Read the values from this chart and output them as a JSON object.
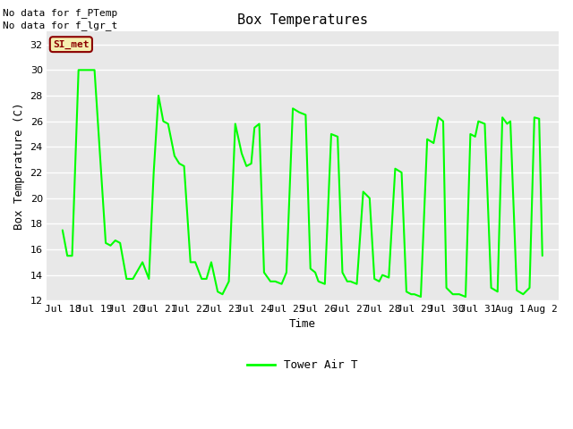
{
  "title": "Box Temperatures",
  "ylabel": "Box Temperature (C)",
  "xlabel": "Time",
  "ylim": [
    12,
    33
  ],
  "yticks": [
    12,
    14,
    16,
    18,
    20,
    22,
    24,
    26,
    28,
    30,
    32
  ],
  "bg_color": "#e8e8e8",
  "line_color": "#00ff00",
  "annotations": [
    "No data for f_PTemp",
    "No data for f_lgr_t"
  ],
  "si_met_label": "SI_met",
  "legend_label": "Tower Air T",
  "x_tick_labels": [
    "Jul 18",
    "Jul 19",
    "Jul 20",
    "Jul 21",
    "Jul 22",
    "Jul 23",
    "Jul 24",
    "Jul 25",
    "Jul 26",
    "Jul 27",
    "Jul 28",
    "Jul 29",
    "Jul 30",
    "Jul 31",
    "Aug 1",
    "Aug 2"
  ],
  "time_data": [
    0.0,
    0.15,
    0.3,
    0.5,
    1.0,
    1.35,
    1.5,
    1.65,
    1.8,
    2.0,
    2.2,
    2.5,
    2.7,
    2.85,
    3.0,
    3.15,
    3.3,
    3.5,
    3.65,
    3.8,
    4.0,
    4.15,
    4.35,
    4.5,
    4.65,
    4.85,
    5.0,
    5.2,
    5.4,
    5.6,
    5.75,
    5.9,
    6.0,
    6.15,
    6.3,
    6.5,
    6.65,
    6.85,
    7.0,
    7.2,
    7.4,
    7.6,
    7.75,
    7.9,
    8.0,
    8.2,
    8.4,
    8.6,
    8.75,
    8.9,
    9.0,
    9.2,
    9.4,
    9.6,
    9.75,
    9.9,
    10.0,
    10.2,
    10.4,
    10.6,
    10.75,
    10.9,
    11.0,
    11.2,
    11.4,
    11.6,
    11.75,
    11.9,
    12.0,
    12.2,
    12.4,
    12.6,
    12.75,
    12.9,
    13.0,
    13.2,
    13.4,
    13.6,
    13.75,
    13.9,
    14.0,
    14.2,
    14.4,
    14.6,
    14.75,
    14.9,
    15.0
  ],
  "temp_data": [
    17.5,
    15.5,
    15.5,
    30.0,
    30.0,
    16.5,
    16.3,
    16.7,
    16.5,
    13.7,
    13.7,
    15.0,
    13.7,
    22.0,
    28.0,
    26.0,
    25.8,
    23.3,
    22.7,
    22.5,
    15.0,
    15.0,
    13.7,
    13.7,
    15.0,
    12.7,
    12.5,
    13.5,
    25.8,
    23.5,
    22.5,
    22.7,
    25.5,
    25.8,
    14.2,
    13.5,
    13.5,
    13.3,
    14.2,
    27.0,
    26.7,
    26.5,
    14.5,
    14.2,
    13.5,
    13.3,
    25.0,
    24.8,
    14.2,
    13.5,
    13.5,
    13.3,
    20.5,
    20.0,
    13.7,
    13.5,
    14.0,
    13.8,
    22.3,
    22.0,
    12.7,
    12.5,
    12.5,
    12.3,
    24.6,
    24.3,
    26.3,
    26.0,
    13.0,
    12.5,
    12.5,
    12.3,
    25.0,
    24.8,
    26.0,
    25.8,
    13.0,
    12.7,
    26.3,
    25.8,
    26.0,
    12.8,
    12.5,
    13.0,
    26.3,
    26.2,
    15.5
  ]
}
